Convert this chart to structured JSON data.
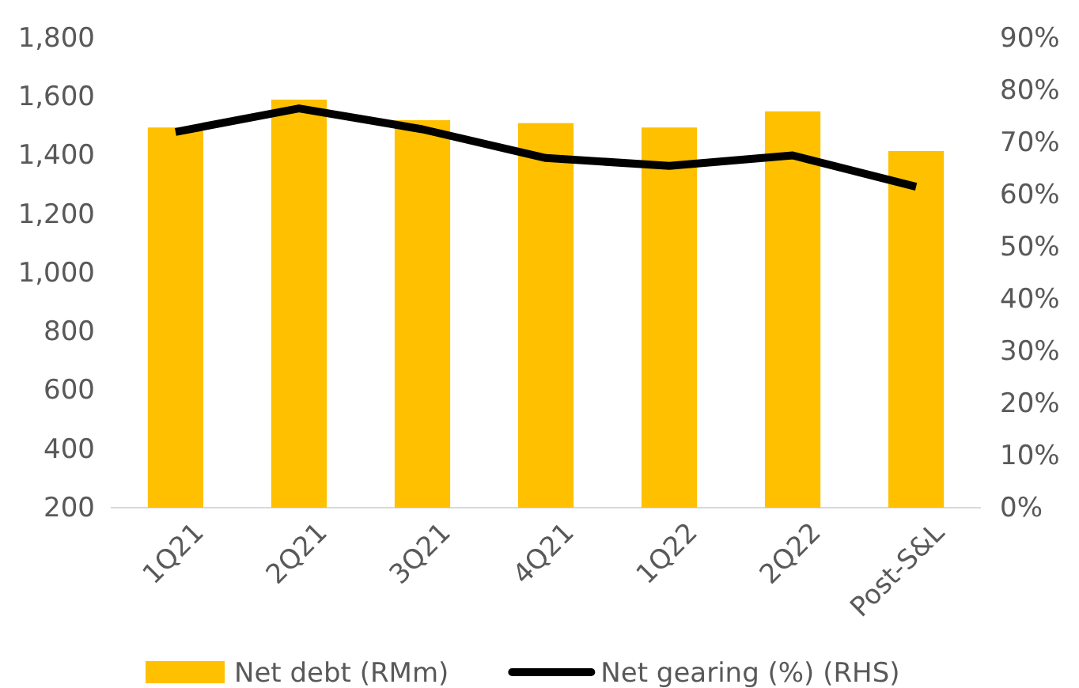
{
  "chart_data": {
    "type": "bar",
    "categories": [
      "1Q21",
      "2Q21",
      "3Q21",
      "4Q21",
      "1Q22",
      "2Q22",
      "Post-S&L"
    ],
    "series": [
      {
        "name": "Net debt (RMm)",
        "color": "#ffc000",
        "values": [
          1495,
          1590,
          1520,
          1510,
          1495,
          1550,
          1415
        ]
      },
      {
        "name": "Net gearing (%) (RHS)",
        "color": "#000000",
        "type": "line",
        "axis": "y2",
        "values": [
          72,
          76.5,
          72.5,
          67,
          65.5,
          67.5,
          61.5
        ]
      }
    ],
    "ylim": [
      200,
      1800
    ],
    "yticks": [
      {
        "value": 200,
        "label": "200"
      },
      {
        "value": 400,
        "label": "400"
      },
      {
        "value": 600,
        "label": "600"
      },
      {
        "value": 800,
        "label": "800"
      },
      {
        "value": 1000,
        "label": "1,000"
      },
      {
        "value": 1200,
        "label": "1,200"
      },
      {
        "value": 1400,
        "label": "1,400"
      },
      {
        "value": 1600,
        "label": "1,600"
      },
      {
        "value": 1800,
        "label": "1,800"
      }
    ],
    "y2lim": [
      0,
      90
    ],
    "y2ticks": [
      {
        "value": 0,
        "label": "0%"
      },
      {
        "value": 10,
        "label": "10%"
      },
      {
        "value": 20,
        "label": "20%"
      },
      {
        "value": 30,
        "label": "30%"
      },
      {
        "value": 40,
        "label": "40%"
      },
      {
        "value": 50,
        "label": "50%"
      },
      {
        "value": 60,
        "label": "60%"
      },
      {
        "value": 70,
        "label": "70%"
      },
      {
        "value": 80,
        "label": "80%"
      },
      {
        "value": 90,
        "label": "90%"
      }
    ],
    "legend": "bottom",
    "grid": false,
    "marker": "none"
  }
}
